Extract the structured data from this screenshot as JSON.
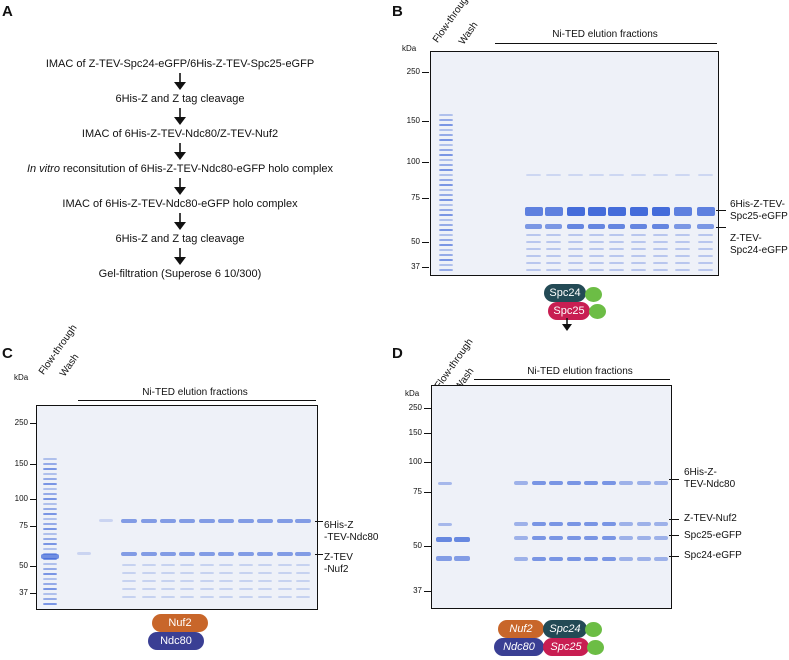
{
  "panels": {
    "a": {
      "letter": "A",
      "steps": [
        {
          "prefix": "",
          "italic": "",
          "text": "IMAC of Z-TEV-Spc24-eGFP/6His-Z-TEV-Spc25-eGFP"
        },
        {
          "prefix": "",
          "italic": "",
          "text": "6His-Z and Z tag cleavage"
        },
        {
          "prefix": "",
          "italic": "",
          "text": "IMAC of 6His-Z-TEV-Ndc80/Z-TEV-Nuf2"
        },
        {
          "prefix": "",
          "italic": "In vitro",
          "text": " reconsitution of 6His-Z-TEV-Ndc80-eGFP holo complex"
        },
        {
          "prefix": "",
          "italic": "",
          "text": "IMAC of 6His-Z-TEV-Ndc80-eGFP holo complex"
        },
        {
          "prefix": "",
          "italic": "",
          "text": "6His-Z and Z tag cleavage"
        },
        {
          "prefix": "",
          "italic": "",
          "text": "Gel-filtration (Superose 6 10/300)"
        }
      ]
    },
    "b": {
      "letter": "B",
      "kda": "kDa",
      "markers": [
        "250",
        "150",
        "100",
        "75",
        "50",
        "37"
      ],
      "lane_labels": [
        "Flow-through",
        "Wash"
      ],
      "fractions_label": "Ni-TED elution fractions",
      "bands": [
        "6His-Z-TEV-\nSpc25-eGFP",
        "Z-TEV-\nSpc24-eGFP"
      ],
      "complex": {
        "top": "Spc24",
        "bottom": "Spc25"
      }
    },
    "c": {
      "letter": "C",
      "kda": "kDa",
      "markers": [
        "250",
        "150",
        "100",
        "75",
        "50",
        "37"
      ],
      "lane_labels": [
        "Flow-through",
        "Wash"
      ],
      "fractions_label": "Ni-TED elution fractions",
      "bands": [
        "6His-Z\n-TEV-Ndc80",
        "Z-TEV\n-Nuf2"
      ],
      "complex": {
        "top": "Nuf2",
        "bottom": "Ndc80"
      }
    },
    "d": {
      "letter": "D",
      "kda": "kDa",
      "markers": [
        "250",
        "150",
        "100",
        "75",
        "50",
        "37"
      ],
      "lane_labels": [
        "Flow-through",
        "Wash"
      ],
      "fractions_label": "Ni-TED elution fractions",
      "bands": [
        "6His-Z-\nTEV-Ndc80",
        "Z-TEV-Nuf2",
        "Spc25-eGFP",
        "Spc24-eGFP"
      ],
      "complex": {
        "nuf2": "Nuf2",
        "spc24": "Spc24",
        "ndc80": "Ndc80",
        "spc25": "Spc25"
      }
    }
  },
  "colors": {
    "spc24": "#234a55",
    "spc25": "#c81e52",
    "nuf2": "#c8662a",
    "ndc80": "#3a3f94",
    "gfp": "#6cbd45",
    "gel_bg": "#eef1f8",
    "band": "#3a64d8"
  }
}
